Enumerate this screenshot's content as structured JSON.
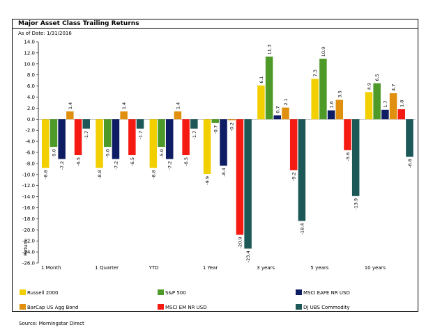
{
  "header": {
    "title": "Major Asset Class Trailing Returns",
    "as_of": "As of Date: 1/31/2016"
  },
  "footer": {
    "source": "Source: Morningstar Direct"
  },
  "colors": {
    "Russell 2000": "#f2cf00",
    "S&P 500": "#4e9a29",
    "MSCI EAFE NR USD": "#0e1d63",
    "BarCap US Agg Bond": "#e0900e",
    "MSCI EM NR USD": "#f51b12",
    "DJ UBS Commodity": "#1b5857"
  },
  "chart_data": {
    "type": "bar",
    "title": "Major Asset Class Trailing Returns",
    "xlabel": "",
    "ylabel": "Return",
    "ylim": [
      -26,
      14
    ],
    "ytick_step": 2,
    "grid": false,
    "legend_position": "bottom",
    "categories": [
      "1 Month",
      "1 Quarter",
      "YTD",
      "1 Year",
      "3 years",
      "5 years",
      "10 years"
    ],
    "series": [
      {
        "name": "Russell 2000",
        "values": [
          -8.8,
          -8.8,
          -8.8,
          -9.9,
          6.1,
          7.3,
          4.9
        ]
      },
      {
        "name": "S&P 500",
        "values": [
          -5.0,
          -5.0,
          -5.0,
          -0.7,
          11.3,
          10.9,
          6.5
        ]
      },
      {
        "name": "MSCI EAFE NR USD",
        "values": [
          -7.2,
          -7.2,
          -7.2,
          -8.4,
          0.7,
          1.6,
          1.7
        ]
      },
      {
        "name": "BarCap US Agg Bond",
        "values": [
          1.4,
          1.4,
          1.4,
          -0.2,
          2.1,
          3.5,
          4.7
        ]
      },
      {
        "name": "MSCI EM NR USD",
        "values": [
          -6.5,
          -6.5,
          -6.5,
          -20.9,
          -9.2,
          -5.6,
          1.8
        ]
      },
      {
        "name": "DJ UBS Commodity",
        "values": [
          -1.7,
          -1.7,
          -1.7,
          -23.4,
          -18.4,
          -13.9,
          -6.8
        ]
      }
    ],
    "legend_order": [
      "Russell 2000",
      "S&P 500",
      "MSCI EAFE NR USD",
      "BarCap US Agg Bond",
      "MSCI EM NR USD",
      "DJ UBS Commodity"
    ]
  }
}
